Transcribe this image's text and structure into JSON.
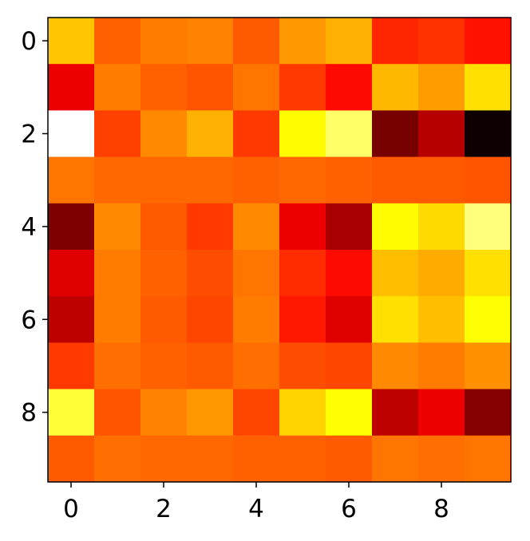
{
  "chart_data": {
    "type": "heatmap",
    "colormap": "hot",
    "clim": [
      0,
      1
    ],
    "xlim": [
      -0.5,
      9.5
    ],
    "ylim": [
      9.5,
      -0.5
    ],
    "xticks": [
      0,
      2,
      4,
      6,
      8
    ],
    "yticks": [
      0,
      2,
      4,
      6,
      8
    ],
    "values": [
      [
        0.66,
        0.51,
        0.55,
        0.56,
        0.5,
        0.59,
        0.63,
        0.42,
        0.44,
        0.39
      ],
      [
        0.34,
        0.55,
        0.51,
        0.49,
        0.54,
        0.45,
        0.38,
        0.64,
        0.6,
        0.7
      ],
      [
        1.0,
        0.46,
        0.57,
        0.63,
        0.45,
        0.74,
        0.85,
        0.17,
        0.26,
        0.02
      ],
      [
        0.54,
        0.52,
        0.52,
        0.52,
        0.51,
        0.52,
        0.51,
        0.5,
        0.5,
        0.49
      ],
      [
        0.18,
        0.57,
        0.5,
        0.45,
        0.57,
        0.34,
        0.24,
        0.74,
        0.69,
        0.87
      ],
      [
        0.32,
        0.55,
        0.51,
        0.48,
        0.54,
        0.43,
        0.38,
        0.65,
        0.62,
        0.7
      ],
      [
        0.27,
        0.55,
        0.5,
        0.47,
        0.55,
        0.4,
        0.32,
        0.7,
        0.65,
        0.75
      ],
      [
        0.45,
        0.53,
        0.51,
        0.5,
        0.53,
        0.48,
        0.47,
        0.57,
        0.55,
        0.58
      ],
      [
        0.8,
        0.49,
        0.56,
        0.59,
        0.47,
        0.68,
        0.75,
        0.27,
        0.34,
        0.19
      ],
      [
        0.5,
        0.53,
        0.52,
        0.52,
        0.51,
        0.51,
        0.5,
        0.54,
        0.53,
        0.54
      ]
    ]
  }
}
